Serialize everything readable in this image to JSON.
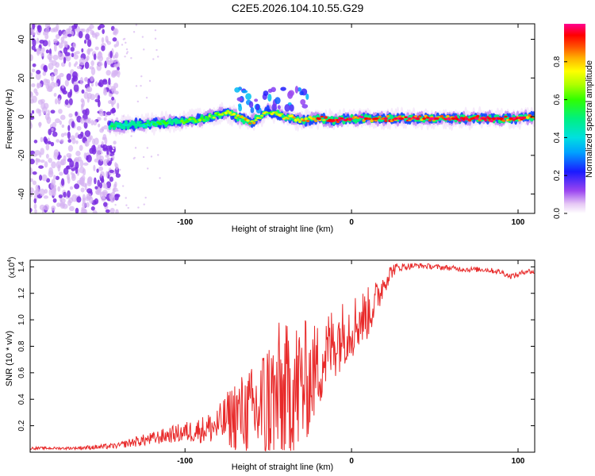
{
  "page_title": "C2E5.2026.104.10.55.G29",
  "colors": {
    "snr_line": "#e82a2a",
    "spectrogram_sparse": "#7a2be0",
    "colormap": [
      "#ffffff",
      "#e6c8f5",
      "#9a45f0",
      "#1a1aff",
      "#00a0ff",
      "#00e0e0",
      "#00f080",
      "#30ff00",
      "#b0ff00",
      "#ffff00",
      "#ffb000",
      "#ff5000",
      "#ff0000",
      "#ff0090"
    ]
  },
  "colorbar": {
    "label": "Normalized spectral amplitude",
    "ticks": [
      "0.0",
      "0.2",
      "0.4",
      "0.6",
      "0.8"
    ],
    "tick_values": [
      0.0,
      0.2,
      0.4,
      0.6,
      0.8
    ],
    "range": [
      0,
      1
    ]
  },
  "chart_data": [
    {
      "type": "heatmap",
      "title": "C2E5.2026.104.10.55.G29",
      "xlabel": "Height of straight line (km)",
      "ylabel": "Frequency (Hz)",
      "xlim": [
        -193,
        110
      ],
      "ylim": [
        -50,
        48
      ],
      "x_ticks": [
        "-100",
        "0",
        "100"
      ],
      "x_tick_values": [
        -100,
        0,
        100
      ],
      "y_ticks": [
        "-40",
        "-20",
        "0",
        "20",
        "40"
      ],
      "y_tick_values": [
        -40,
        -20,
        0,
        20,
        40
      ],
      "ridge": {
        "x": [
          -145,
          -130,
          -110,
          -90,
          -75,
          -60,
          -50,
          -40,
          -30,
          -20,
          -10,
          0,
          20,
          40,
          60,
          80,
          95,
          110
        ],
        "y": [
          -5,
          -4,
          -3,
          -1,
          2,
          -3,
          3,
          0,
          -2,
          -1,
          -2,
          -1,
          -1,
          -1,
          -1,
          -1,
          -1,
          0
        ],
        "amplitude": [
          0.45,
          0.42,
          0.5,
          0.55,
          0.6,
          0.75,
          0.6,
          0.7,
          0.72,
          0.8,
          0.9,
          0.9,
          0.82,
          0.85,
          0.88,
          0.95,
          0.85,
          0.8
        ]
      },
      "sparse_region_x": [
        -193,
        -145
      ]
    },
    {
      "type": "line",
      "xlabel": "Height of straight line (km)",
      "ylabel": "SNR (10 * v/v)",
      "exponent_label": "(x10",
      "exponent_sup": "4",
      "exponent_close": ")",
      "xlim": [
        -193,
        110
      ],
      "ylim": [
        0,
        1.45
      ],
      "x_ticks": [
        "-100",
        "0",
        "100"
      ],
      "x_tick_values": [
        -100,
        0,
        100
      ],
      "y_ticks": [
        "0.2",
        "0.4",
        "0.6",
        "0.8",
        "1.0",
        "1.2",
        "1.4"
      ],
      "y_tick_values": [
        0.2,
        0.4,
        0.6,
        0.8,
        1.0,
        1.2,
        1.4
      ],
      "series": [
        {
          "name": "SNR",
          "x": [
            -193,
            -170,
            -150,
            -140,
            -130,
            -120,
            -110,
            -100,
            -90,
            -80,
            -75,
            -70,
            -60,
            -50,
            -45,
            -40,
            -35,
            -30,
            -25,
            -20,
            -15,
            -10,
            -5,
            0,
            5,
            10,
            15,
            20,
            25,
            30,
            40,
            50,
            60,
            70,
            80,
            90,
            95,
            100,
            105,
            110
          ],
          "y": [
            0.03,
            0.03,
            0.04,
            0.05,
            0.08,
            0.1,
            0.13,
            0.15,
            0.17,
            0.2,
            0.25,
            0.28,
            0.3,
            0.35,
            0.4,
            0.42,
            0.45,
            0.5,
            0.55,
            0.65,
            0.75,
            0.85,
            0.9,
            0.95,
            1.0,
            1.05,
            1.15,
            1.3,
            1.38,
            1.4,
            1.41,
            1.4,
            1.39,
            1.38,
            1.38,
            1.36,
            1.33,
            1.34,
            1.37,
            1.36
          ],
          "spread": [
            0.01,
            0.01,
            0.02,
            0.02,
            0.04,
            0.05,
            0.06,
            0.08,
            0.1,
            0.15,
            0.2,
            0.28,
            0.35,
            0.55,
            0.6,
            0.55,
            0.55,
            0.55,
            0.4,
            0.35,
            0.3,
            0.3,
            0.25,
            0.25,
            0.22,
            0.2,
            0.15,
            0.1,
            0.05,
            0.03,
            0.02,
            0.02,
            0.02,
            0.02,
            0.02,
            0.02,
            0.02,
            0.02,
            0.02,
            0.02
          ]
        }
      ]
    }
  ]
}
